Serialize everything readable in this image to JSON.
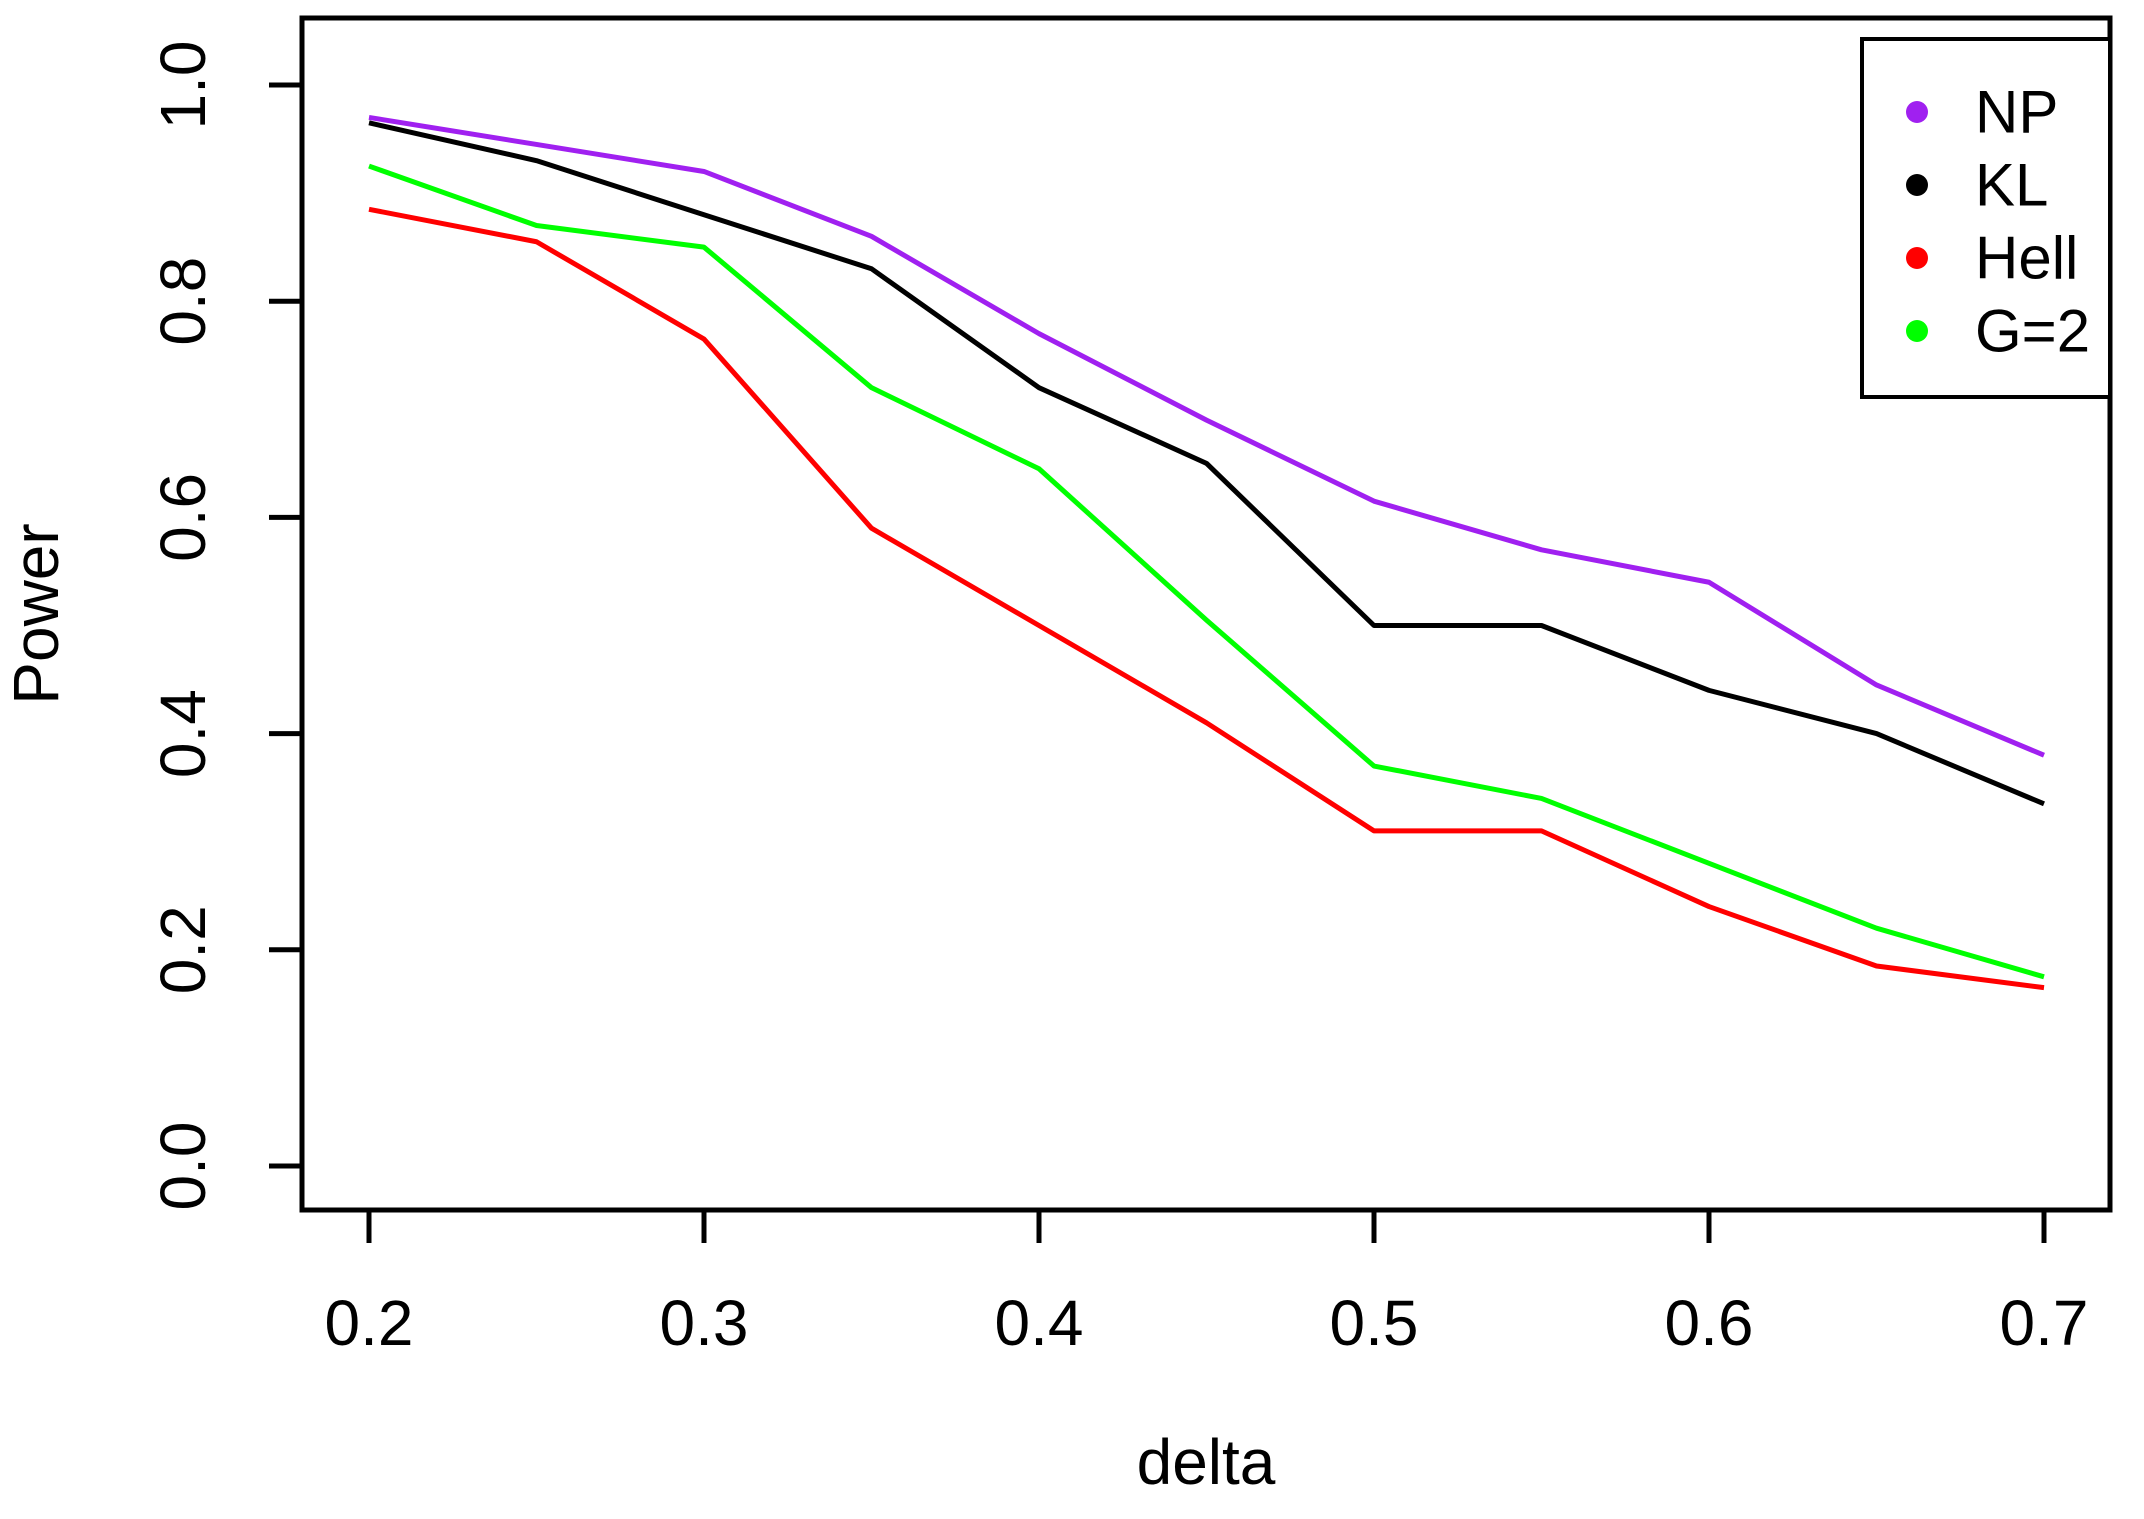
{
  "chart_data": {
    "type": "line",
    "title": "",
    "xlabel": "delta",
    "ylabel": "Power",
    "x": [
      0.2,
      0.25,
      0.3,
      0.35,
      0.4,
      0.45,
      0.5,
      0.55,
      0.6,
      0.65,
      0.7
    ],
    "series": [
      {
        "name": "NP",
        "color": "#A020F0",
        "values": [
          0.97,
          0.945,
          0.92,
          0.86,
          0.77,
          0.69,
          0.615,
          0.57,
          0.54,
          0.445,
          0.38
        ]
      },
      {
        "name": "KL",
        "color": "#000000",
        "values": [
          0.965,
          0.93,
          0.88,
          0.83,
          0.72,
          0.65,
          0.5,
          0.5,
          0.44,
          0.4,
          0.335
        ]
      },
      {
        "name": "Hell",
        "color": "#FF0000",
        "values": [
          0.885,
          0.855,
          0.765,
          0.59,
          0.5,
          0.41,
          0.31,
          0.31,
          0.24,
          0.185,
          0.165
        ]
      },
      {
        "name": "G=2",
        "color": "#00FF00",
        "values": [
          0.925,
          0.87,
          0.85,
          0.72,
          0.645,
          0.505,
          0.37,
          0.34,
          0.28,
          0.22,
          0.175
        ]
      }
    ],
    "x_tick_values": [
      0.2,
      0.3,
      0.4,
      0.5,
      0.6,
      0.7
    ],
    "x_tick_labels": [
      "0.2",
      "0.3",
      "0.4",
      "0.5",
      "0.6",
      "0.7"
    ],
    "y_tick_values": [
      0.0,
      0.2,
      0.4,
      0.6,
      0.8,
      1.0
    ],
    "y_tick_labels": [
      "0.0",
      "0.2",
      "0.4",
      "0.6",
      "0.8",
      "1.0"
    ],
    "xlim": [
      0.18,
      0.715
    ],
    "ylim": [
      -0.04,
      1.06
    ],
    "grid": false,
    "legend_position": "top-right",
    "axis_color": "#000000",
    "background_color": "#ffffff"
  }
}
